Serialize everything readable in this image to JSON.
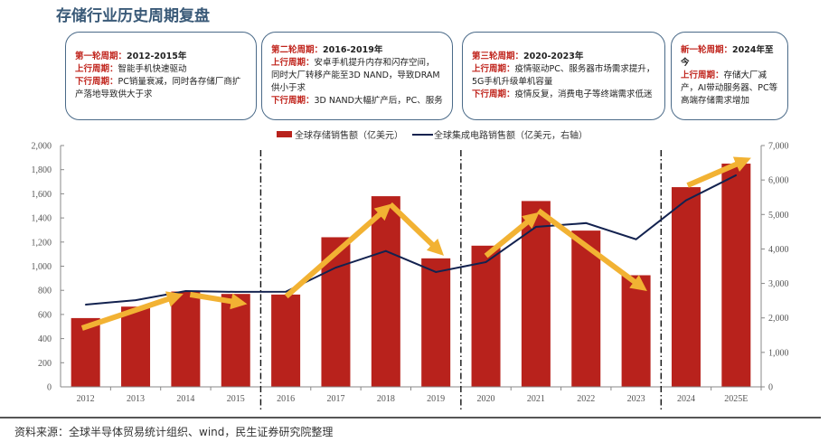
{
  "title": "存储行业历史周期复盘",
  "boxes": [
    {
      "head_label": "第一轮周期：",
      "head_value": "2012-2015年",
      "up_label": "上行周期：",
      "up_text": "智能手机快速驱动",
      "down_label": "下行周期：",
      "down_text": "PC销量衰减，同时各存储厂商扩产落地导致供大于求"
    },
    {
      "head_label": "第二轮周期：",
      "head_value": "2016-2019年",
      "up_label": "上行周期：",
      "up_text": "安卓手机提升内存和闪存空间，同时大厂转移产能至3D NAND，导致DRAM供小于求",
      "down_label": "下行周期：",
      "down_text": "3D NAND大幅扩产后，PC、服务"
    },
    {
      "head_label": "第三轮周期：",
      "head_value": "2020-2023年",
      "up_label": "上行周期：",
      "up_text": "疫情驱动PC、服务器市场需求提升，5G手机升级单机容量",
      "down_label": "下行周期：",
      "down_text": "疫情反复，消费电子等终端需求低迷"
    },
    {
      "head_label": "新一轮周期：",
      "head_value": "2024年至今",
      "up_label": "上行周期：",
      "up_text": "存储大厂减产，AI带动服务器、PC等高端存储需求增加"
    }
  ],
  "source": "资料来源：全球半导体贸易统计组织、wind，民生证券研究院整理",
  "chart_data": {
    "type": "bar+line",
    "categories": [
      "2012",
      "2013",
      "2014",
      "2015",
      "2016",
      "2017",
      "2018",
      "2019",
      "2020",
      "2021",
      "2022",
      "2023",
      "2024",
      "2025E"
    ],
    "series": [
      {
        "name": "全球存储销售额（亿美元）",
        "type": "bar",
        "axis": "left",
        "color": "#b8221c",
        "values": [
          570,
          665,
          790,
          770,
          765,
          1240,
          1580,
          1065,
          1170,
          1540,
          1295,
          925,
          1655,
          1850
        ]
      },
      {
        "name": "全球集成电路销售额（亿美元，右轴）",
        "type": "line",
        "axis": "right",
        "color": "#13224f",
        "values": [
          2385,
          2515,
          2780,
          2755,
          2760,
          3460,
          3940,
          3330,
          3620,
          4640,
          4750,
          4280,
          5410,
          6140
        ]
      }
    ],
    "left_axis": {
      "range": [
        0,
        2000
      ],
      "step": 200,
      "tick_labels": [
        "0",
        "200",
        "400",
        "600",
        "800",
        "1,000",
        "1,200",
        "1,400",
        "1,600",
        "1,800",
        "2,000"
      ]
    },
    "right_axis": {
      "range": [
        0,
        7000
      ],
      "step": 1000,
      "tick_labels": [
        "0",
        "1,000",
        "2,000",
        "3,000",
        "4,000",
        "5,000",
        "6,000",
        "7,000"
      ]
    },
    "grid": false,
    "legend": "top",
    "cycle_dividers_after": [
      "2015",
      "2019",
      "2023"
    ],
    "trend_arrows": {
      "color": "#f2b233",
      "unit": "category index / left axis",
      "items": [
        {
          "from": [
            -0.07,
            487
          ],
          "to": [
            1.81,
            750
          ]
        },
        {
          "from": [
            2.09,
            765
          ],
          "to": [
            3.08,
            697
          ]
        },
        {
          "from": [
            4.01,
            750
          ],
          "to": [
            6.0,
            1475
          ]
        },
        {
          "from": [
            6.09,
            1513
          ],
          "to": [
            7.05,
            1131
          ]
        },
        {
          "from": [
            8.0,
            1086
          ],
          "to": [
            8.95,
            1408
          ]
        },
        {
          "from": [
            9.05,
            1460
          ],
          "to": [
            11.1,
            831
          ]
        },
        {
          "from": [
            12.03,
            1670
          ],
          "to": [
            13.16,
            1873
          ]
        }
      ]
    }
  }
}
